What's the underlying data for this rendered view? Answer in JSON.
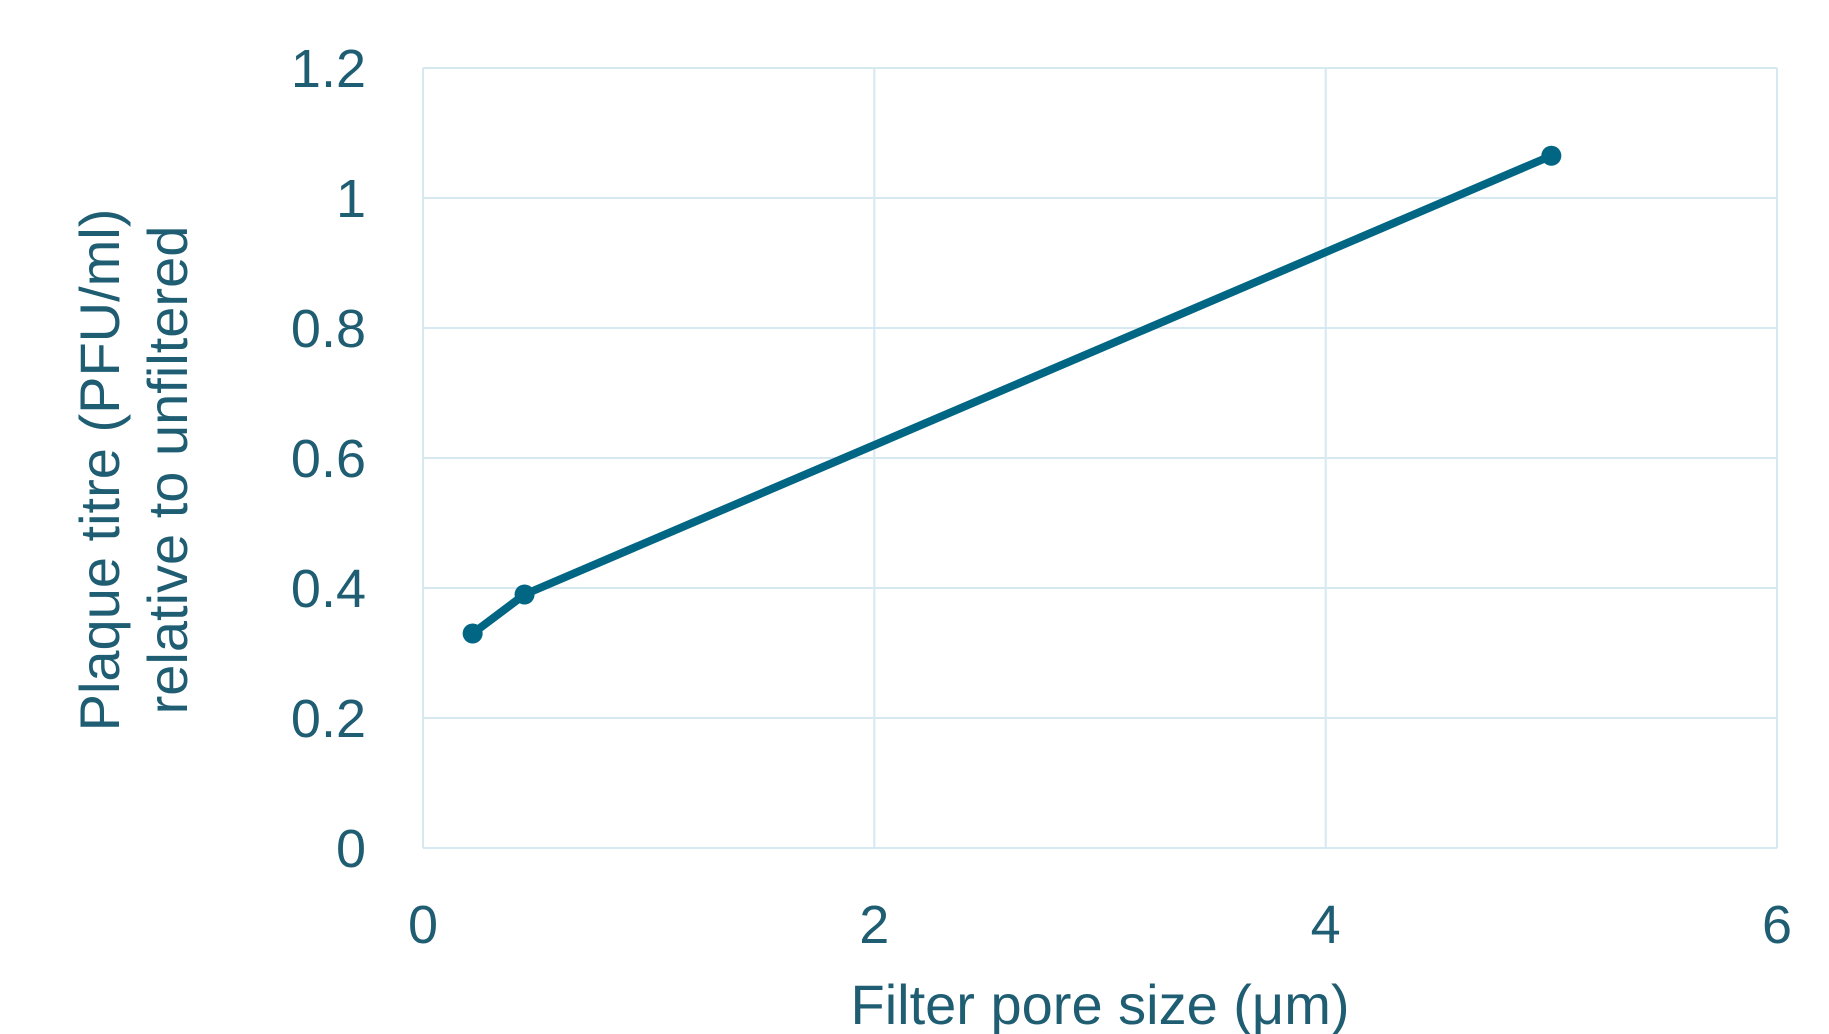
{
  "colors": {
    "series": "#006683",
    "grid": "#d6e9f1",
    "text": "#1f5d73",
    "background": "#ffffff"
  },
  "chart_data": {
    "type": "line",
    "title": "",
    "xlabel": "Filter pore size (μm)",
    "ylabel_lines": [
      "Plaque titre (PFU/ml)",
      "relative to unfiltered"
    ],
    "xlim": [
      0,
      6
    ],
    "ylim": [
      0,
      1.2
    ],
    "x_ticks": [
      0,
      2,
      4,
      6
    ],
    "x_tick_labels": [
      "0",
      "2",
      "4",
      "6"
    ],
    "y_ticks": [
      0,
      0.2,
      0.4,
      0.6,
      0.8,
      1.0,
      1.2
    ],
    "y_tick_labels": [
      "0",
      "0.2",
      "0.4",
      "0.6",
      "0.8",
      "1",
      "1.2"
    ],
    "grid": true,
    "legend": "none",
    "series": [
      {
        "x": [
          0.22,
          0.45,
          5.0
        ],
        "y": [
          0.33,
          0.39,
          1.065
        ]
      }
    ]
  }
}
